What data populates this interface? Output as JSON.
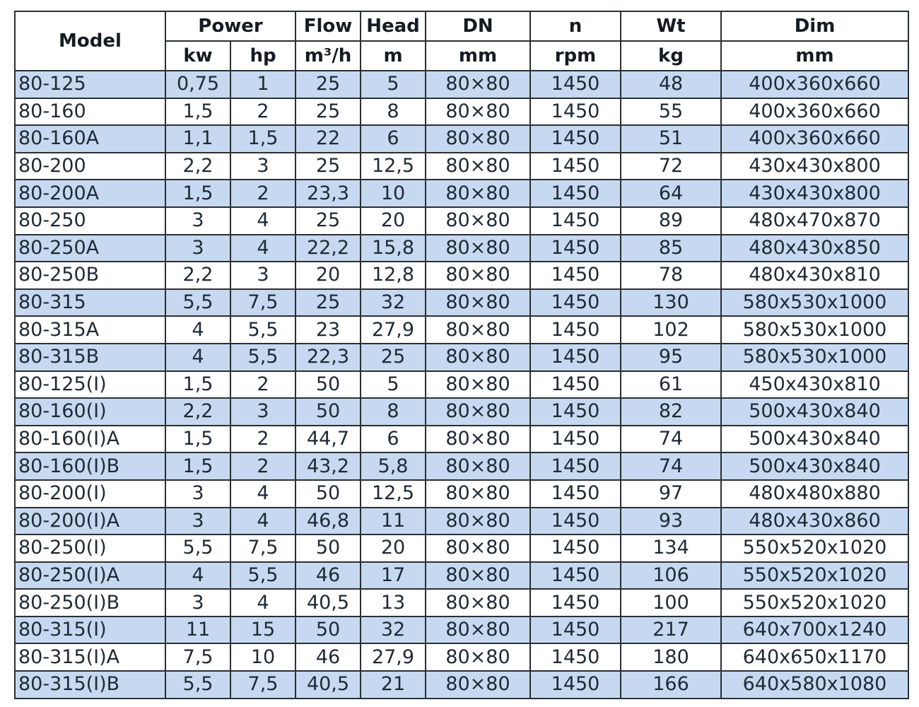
{
  "header": {
    "model": "Model",
    "power": "Power",
    "flow": "Flow",
    "head": "Head",
    "dn": "DN",
    "n": "n",
    "wt": "Wt",
    "dim": "Dim",
    "units": [
      "kw",
      "hp",
      "m³/h",
      "m",
      "mm",
      "rpm",
      "kg",
      "mm"
    ]
  },
  "colors": {
    "row_alt": "#c6d9f0",
    "border": "#2b2f33"
  },
  "rows": [
    [
      "80-125",
      "0,75",
      "1",
      "25",
      "5",
      "80×80",
      "1450",
      "48",
      "400x360x660"
    ],
    [
      "80-160",
      "1,5",
      "2",
      "25",
      "8",
      "80×80",
      "1450",
      "55",
      "400x360x660"
    ],
    [
      "80-160A",
      "1,1",
      "1,5",
      "22",
      "6",
      "80×80",
      "1450",
      "51",
      "400x360x660"
    ],
    [
      "80-200",
      "2,2",
      "3",
      "25",
      "12,5",
      "80×80",
      "1450",
      "72",
      "430x430x800"
    ],
    [
      "80-200A",
      "1,5",
      "2",
      "23,3",
      "10",
      "80×80",
      "1450",
      "64",
      "430x430x800"
    ],
    [
      "80-250",
      "3",
      "4",
      "25",
      "20",
      "80×80",
      "1450",
      "89",
      "480x470x870"
    ],
    [
      "80-250A",
      "3",
      "4",
      "22,2",
      "15,8",
      "80×80",
      "1450",
      "85",
      "480x430x850"
    ],
    [
      "80-250B",
      "2,2",
      "3",
      "20",
      "12,8",
      "80×80",
      "1450",
      "78",
      "480x430x810"
    ],
    [
      "80-315",
      "5,5",
      "7,5",
      "25",
      "32",
      "80×80",
      "1450",
      "130",
      "580x530x1000"
    ],
    [
      "80-315A",
      "4",
      "5,5",
      "23",
      "27,9",
      "80×80",
      "1450",
      "102",
      "580x530x1000"
    ],
    [
      "80-315B",
      "4",
      "5,5",
      "22,3",
      "25",
      "80×80",
      "1450",
      "95",
      "580x530x1000"
    ],
    [
      "80-125(I)",
      "1,5",
      "2",
      "50",
      "5",
      "80×80",
      "1450",
      "61",
      "450x430x810"
    ],
    [
      "80-160(I)",
      "2,2",
      "3",
      "50",
      "8",
      "80×80",
      "1450",
      "82",
      "500x430x840"
    ],
    [
      "80-160(I)A",
      "1,5",
      "2",
      "44,7",
      "6",
      "80×80",
      "1450",
      "74",
      "500x430x840"
    ],
    [
      "80-160(I)B",
      "1,5",
      "2",
      "43,2",
      "5,8",
      "80×80",
      "1450",
      "74",
      "500x430x840"
    ],
    [
      "80-200(I)",
      "3",
      "4",
      "50",
      "12,5",
      "80×80",
      "1450",
      "97",
      "480x480x880"
    ],
    [
      "80-200(I)A",
      "3",
      "4",
      "46,8",
      "11",
      "80×80",
      "1450",
      "93",
      "480x430x860"
    ],
    [
      "80-250(I)",
      "5,5",
      "7,5",
      "50",
      "20",
      "80×80",
      "1450",
      "134",
      "550x520x1020"
    ],
    [
      "80-250(I)A",
      "4",
      "5,5",
      "46",
      "17",
      "80×80",
      "1450",
      "106",
      "550x520x1020"
    ],
    [
      "80-250(I)B",
      "3",
      "4",
      "40,5",
      "13",
      "80×80",
      "1450",
      "100",
      "550x520x1020"
    ],
    [
      "80-315(I)",
      "11",
      "15",
      "50",
      "32",
      "80×80",
      "1450",
      "217",
      "640x700x1240"
    ],
    [
      "80-315(I)A",
      "7,5",
      "10",
      "46",
      "27,9",
      "80×80",
      "1450",
      "180",
      "640x650x1170"
    ],
    [
      "80-315(I)B",
      "5,5",
      "7,5",
      "40,5",
      "21",
      "80×80",
      "1450",
      "166",
      "640x580x1080"
    ]
  ]
}
